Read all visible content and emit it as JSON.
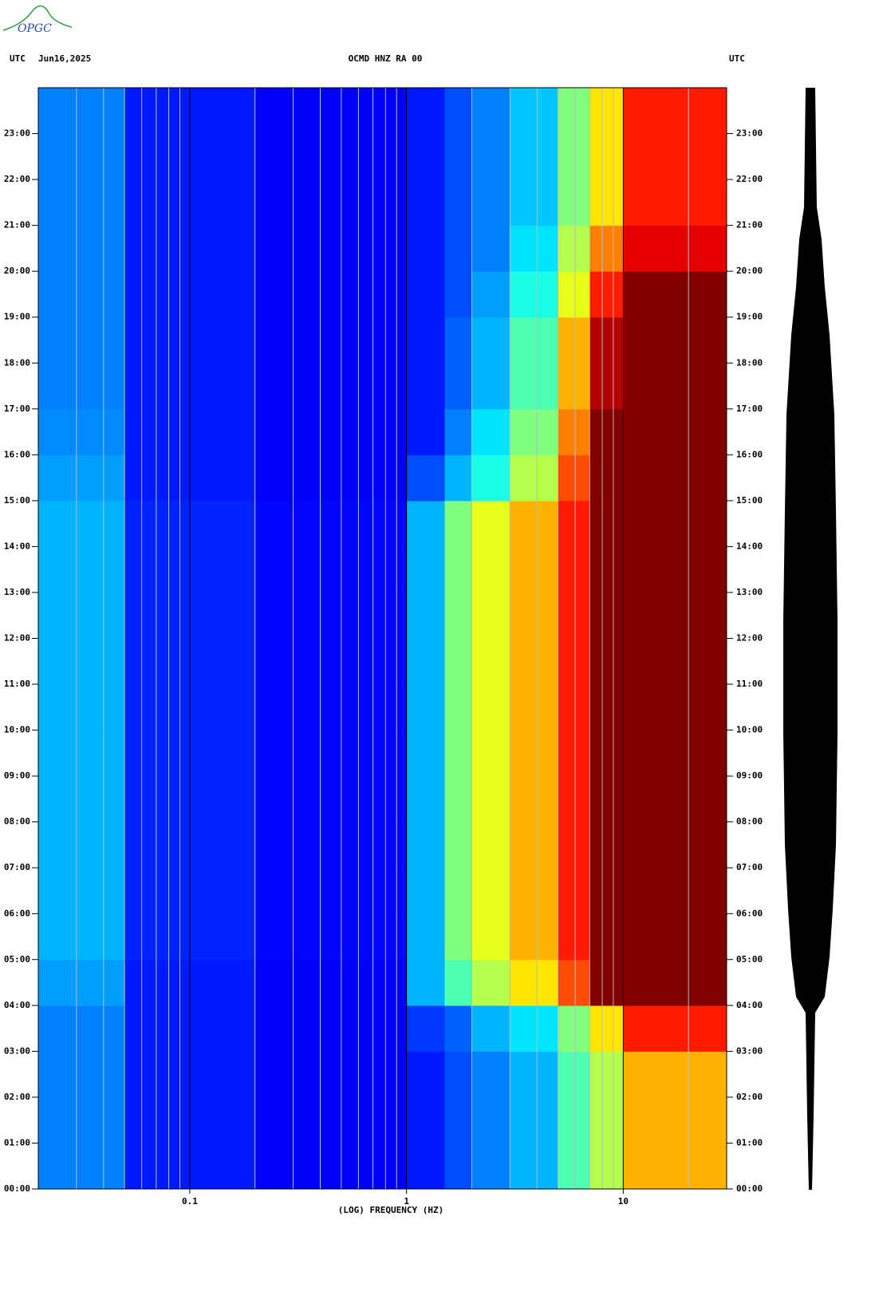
{
  "logo": "OPGC",
  "chart_data": {
    "type": "heatmap",
    "title": "OCMD HNZ RA 00",
    "date": "Jun16,2025",
    "ylabel_left": "UTC",
    "ylabel_right": "UTC",
    "xlabel": "(LOG) FREQUENCY (HZ)",
    "xscale": "log",
    "colormap": "jet",
    "xlim": [
      0.02,
      30
    ],
    "xticks": [
      0.1,
      1,
      10
    ],
    "xminorticks": [
      0.03,
      0.04,
      0.05,
      0.06,
      0.07,
      0.08,
      0.09,
      0.2,
      0.3,
      0.4,
      0.5,
      0.6,
      0.7,
      0.8,
      0.9,
      2,
      3,
      4,
      5,
      6,
      7,
      8,
      9,
      20
    ],
    "ylim": [
      0,
      24
    ],
    "yticks": [
      {
        "value": 0,
        "label": "00:00"
      },
      {
        "value": 1,
        "label": "01:00"
      },
      {
        "value": 2,
        "label": "02:00"
      },
      {
        "value": 3,
        "label": "03:00"
      },
      {
        "value": 4,
        "label": "04:00"
      },
      {
        "value": 5,
        "label": "05:00"
      },
      {
        "value": 6,
        "label": "06:00"
      },
      {
        "value": 7,
        "label": "07:00"
      },
      {
        "value": 8,
        "label": "08:00"
      },
      {
        "value": 9,
        "label": "09:00"
      },
      {
        "value": 10,
        "label": "10:00"
      },
      {
        "value": 11,
        "label": "11:00"
      },
      {
        "value": 12,
        "label": "12:00"
      },
      {
        "value": 13,
        "label": "13:00"
      },
      {
        "value": 14,
        "label": "14:00"
      },
      {
        "value": 15,
        "label": "15:00"
      },
      {
        "value": 16,
        "label": "16:00"
      },
      {
        "value": 17,
        "label": "17:00"
      },
      {
        "value": 18,
        "label": "18:00"
      },
      {
        "value": 19,
        "label": "19:00"
      },
      {
        "value": 20,
        "label": "20:00"
      },
      {
        "value": 21,
        "label": "21:00"
      },
      {
        "value": 22,
        "label": "22:00"
      },
      {
        "value": 23,
        "label": "23:00"
      }
    ],
    "x_bins": [
      0.02,
      0.05,
      0.2,
      1,
      1.5,
      2,
      3,
      5,
      7,
      10,
      30
    ],
    "y_bins": [
      0,
      1,
      2,
      3,
      4,
      5,
      6,
      7,
      8,
      9,
      10,
      11,
      12,
      13,
      14,
      15,
      16,
      17,
      18,
      19,
      20,
      21,
      22,
      23,
      24
    ],
    "values": [
      [
        0.25,
        0.15,
        0.12,
        0.15,
        0.2,
        0.25,
        0.3,
        0.45,
        0.55,
        0.7
      ],
      [
        0.25,
        0.15,
        0.12,
        0.15,
        0.2,
        0.25,
        0.3,
        0.45,
        0.55,
        0.7
      ],
      [
        0.25,
        0.15,
        0.12,
        0.15,
        0.2,
        0.25,
        0.3,
        0.45,
        0.55,
        0.7
      ],
      [
        0.25,
        0.15,
        0.12,
        0.18,
        0.22,
        0.3,
        0.35,
        0.5,
        0.65,
        0.85
      ],
      [
        0.28,
        0.15,
        0.12,
        0.3,
        0.45,
        0.55,
        0.65,
        0.8,
        1,
        1
      ],
      [
        0.3,
        0.16,
        0.13,
        0.3,
        0.5,
        0.6,
        0.7,
        0.85,
        1,
        1
      ],
      [
        0.3,
        0.16,
        0.13,
        0.3,
        0.5,
        0.6,
        0.7,
        0.85,
        1,
        1
      ],
      [
        0.3,
        0.16,
        0.13,
        0.3,
        0.5,
        0.6,
        0.7,
        0.85,
        1,
        1
      ],
      [
        0.3,
        0.16,
        0.13,
        0.3,
        0.5,
        0.6,
        0.7,
        0.85,
        1,
        1
      ],
      [
        0.3,
        0.16,
        0.13,
        0.3,
        0.5,
        0.6,
        0.7,
        0.85,
        1,
        1
      ],
      [
        0.3,
        0.16,
        0.13,
        0.3,
        0.5,
        0.6,
        0.7,
        0.85,
        1,
        1
      ],
      [
        0.3,
        0.16,
        0.13,
        0.3,
        0.5,
        0.6,
        0.7,
        0.85,
        1,
        1
      ],
      [
        0.3,
        0.16,
        0.13,
        0.3,
        0.5,
        0.6,
        0.7,
        0.85,
        1,
        1
      ],
      [
        0.3,
        0.16,
        0.13,
        0.3,
        0.5,
        0.6,
        0.7,
        0.85,
        1,
        1
      ],
      [
        0.3,
        0.16,
        0.13,
        0.3,
        0.5,
        0.6,
        0.7,
        0.85,
        1,
        1
      ],
      [
        0.28,
        0.15,
        0.12,
        0.2,
        0.3,
        0.4,
        0.55,
        0.8,
        1,
        1
      ],
      [
        0.26,
        0.15,
        0.12,
        0.15,
        0.25,
        0.35,
        0.5,
        0.75,
        1,
        1
      ],
      [
        0.25,
        0.15,
        0.12,
        0.15,
        0.22,
        0.3,
        0.45,
        0.7,
        0.95,
        1
      ],
      [
        0.25,
        0.15,
        0.12,
        0.15,
        0.22,
        0.3,
        0.45,
        0.7,
        0.95,
        1
      ],
      [
        0.25,
        0.15,
        0.12,
        0.15,
        0.2,
        0.28,
        0.4,
        0.6,
        0.85,
        1
      ],
      [
        0.25,
        0.15,
        0.12,
        0.15,
        0.2,
        0.25,
        0.35,
        0.55,
        0.75,
        0.9
      ],
      [
        0.25,
        0.15,
        0.12,
        0.15,
        0.2,
        0.25,
        0.32,
        0.5,
        0.65,
        0.85
      ],
      [
        0.25,
        0.15,
        0.12,
        0.15,
        0.2,
        0.25,
        0.32,
        0.5,
        0.65,
        0.85
      ],
      [
        0.25,
        0.15,
        0.12,
        0.15,
        0.2,
        0.25,
        0.32,
        0.5,
        0.65,
        0.85
      ]
    ]
  }
}
